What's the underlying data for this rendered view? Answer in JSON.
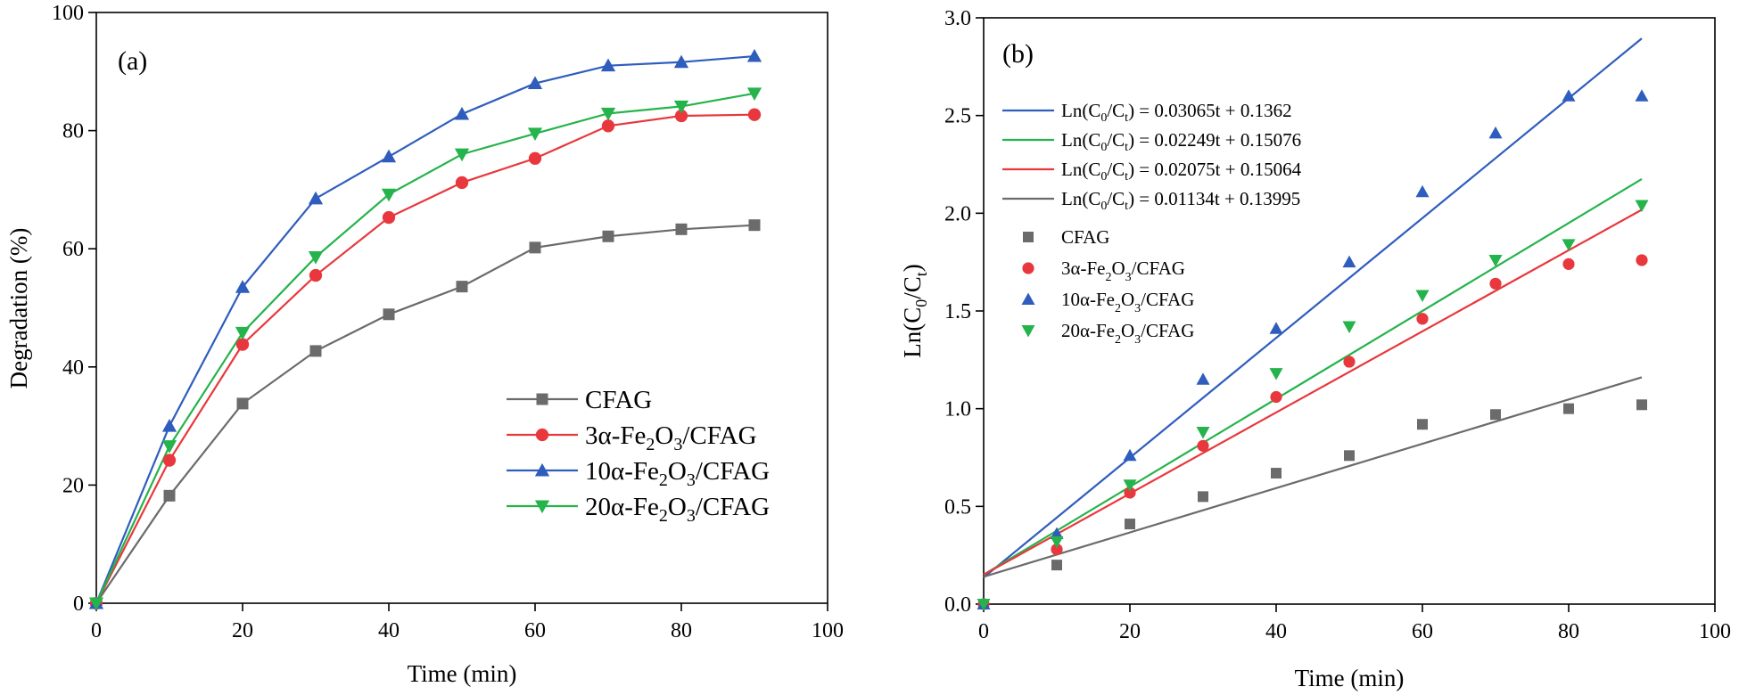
{
  "chart_data": [
    {
      "type": "line",
      "panel_label": "(a)",
      "xlabel": "Time (min)",
      "ylabel": "Degradation (%)",
      "xlim": [
        0,
        100
      ],
      "ylim": [
        0,
        100
      ],
      "xticks": [
        "0",
        "20",
        "40",
        "60",
        "80",
        "100"
      ],
      "yticks": [
        "0",
        "20",
        "40",
        "60",
        "80",
        "100"
      ],
      "x": [
        0,
        10,
        20,
        30,
        40,
        50,
        60,
        70,
        80,
        90
      ],
      "legend_position": "bottom-right",
      "series": [
        {
          "name": "CFAG",
          "name_base": "CFAG",
          "name_suffix": "",
          "marker": "square",
          "color": "#6b6b6b",
          "values": [
            0,
            18.2,
            33.8,
            42.7,
            48.9,
            53.6,
            60.2,
            62.1,
            63.3,
            64.0
          ]
        },
        {
          "name": "3α-Fe2O3/CFAG",
          "name_base": "3α-Fe",
          "name_suffix": "/CFAG",
          "marker": "circle",
          "color": "#e8383d",
          "values": [
            0,
            24.2,
            43.8,
            55.5,
            65.3,
            71.2,
            75.3,
            80.8,
            82.5,
            82.7
          ]
        },
        {
          "name": "10α-Fe2O3/CFAG",
          "name_base": "10α-Fe",
          "name_suffix": "/CFAG",
          "marker": "triangle-up",
          "color": "#2f5dbd",
          "values": [
            0,
            30.0,
            53.5,
            68.5,
            75.6,
            82.8,
            88.0,
            91.0,
            91.6,
            92.6
          ]
        },
        {
          "name": "20α-Fe2O3/CFAG",
          "name_base": "20α-Fe",
          "name_suffix": "/CFAG",
          "marker": "triangle-down",
          "color": "#25b34b",
          "values": [
            0,
            26.6,
            45.8,
            58.6,
            69.2,
            76.0,
            79.5,
            82.9,
            84.1,
            86.3
          ]
        }
      ]
    },
    {
      "type": "scatter",
      "panel_label": "(b)",
      "xlabel": "Time (min)",
      "ylabel": "Ln(C0/Ct)",
      "ylabel_parts": [
        "Ln(C",
        "0",
        "/C",
        "t",
        ")"
      ],
      "xlim": [
        0,
        100
      ],
      "ylim": [
        0,
        3.0
      ],
      "xticks": [
        "0",
        "20",
        "40",
        "60",
        "80",
        "100"
      ],
      "yticks": [
        "0.0",
        "0.5",
        "1.0",
        "1.5",
        "2.0",
        "2.5",
        "3.0"
      ],
      "x": [
        0,
        10,
        20,
        30,
        40,
        50,
        60,
        70,
        80,
        90
      ],
      "legend_position": "top-left",
      "fits": [
        {
          "label": "Ln(C0/Ct) = 0.03065t + 0.1362",
          "equation_tail": ") = 0.03065t + 0.1362",
          "slope": 0.03065,
          "intercept": 0.1362,
          "color": "#2f5dbd"
        },
        {
          "label": "Ln(C0/Ct) = 0.02249t + 0.15076",
          "equation_tail": ") = 0.02249t + 0.15076",
          "slope": 0.02249,
          "intercept": 0.15076,
          "color": "#25b34b"
        },
        {
          "label": "Ln(C0/Ct) = 0.02075t + 0.15064",
          "equation_tail": ") = 0.02075t + 0.15064",
          "slope": 0.02075,
          "intercept": 0.15064,
          "color": "#e8383d"
        },
        {
          "label": "Ln(C0/Ct) = 0.01134t + 0.13995",
          "equation_tail": ") = 0.01134t + 0.13995",
          "slope": 0.01134,
          "intercept": 0.13995,
          "color": "#6b6b6b"
        }
      ],
      "series": [
        {
          "name": "CFAG",
          "name_base": "CFAG",
          "name_suffix": "",
          "marker": "square",
          "color": "#6b6b6b",
          "values": [
            0,
            0.2,
            0.41,
            0.55,
            0.67,
            0.76,
            0.92,
            0.97,
            1.0,
            1.02
          ]
        },
        {
          "name": "3α-Fe2O3/CFAG",
          "name_base": "3α-Fe",
          "name_suffix": "/CFAG",
          "marker": "circle",
          "color": "#e8383d",
          "values": [
            0,
            0.28,
            0.57,
            0.81,
            1.06,
            1.24,
            1.46,
            1.64,
            1.74,
            1.76
          ]
        },
        {
          "name": "10α-Fe2O3/CFAG",
          "name_base": "10α-Fe",
          "name_suffix": "/CFAG",
          "marker": "triangle-up",
          "color": "#2f5dbd",
          "values": [
            0,
            0.36,
            0.76,
            1.15,
            1.41,
            1.75,
            2.11,
            2.41,
            2.6,
            2.6
          ]
        },
        {
          "name": "20α-Fe2O3/CFAG",
          "name_base": "20α-Fe",
          "name_suffix": "/CFAG",
          "marker": "triangle-down",
          "color": "#25b34b",
          "values": [
            0,
            0.32,
            0.61,
            0.88,
            1.18,
            1.42,
            1.58,
            1.76,
            1.84,
            2.04
          ]
        }
      ]
    }
  ]
}
